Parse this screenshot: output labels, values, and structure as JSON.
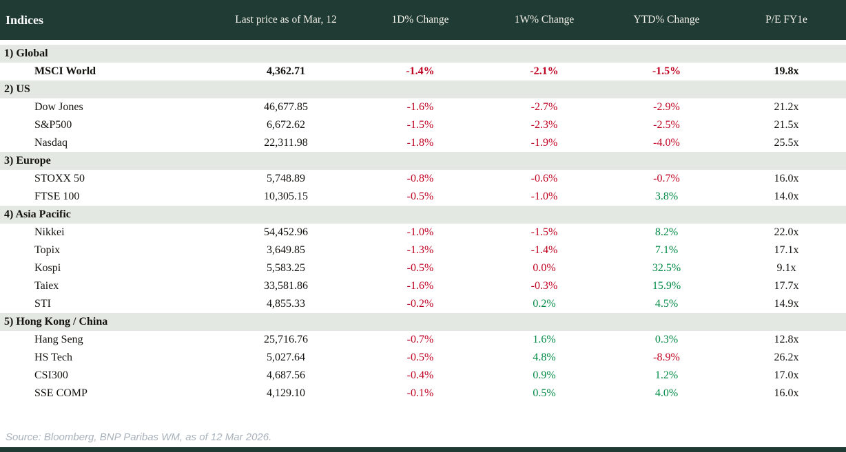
{
  "header": {
    "title": "Indices",
    "columns": [
      "Last price as of Mar, 12",
      "1D% Change",
      "1W% Change",
      "YTD% Change",
      "P/E FY1e"
    ]
  },
  "table": {
    "sections": [
      {
        "label": "1) Global",
        "rows": [
          {
            "name": "MSCI World",
            "bold": true,
            "price": "4,362.71",
            "changes": [
              {
                "v": "-1.4%",
                "c": "neg"
              },
              {
                "v": "-2.1%",
                "c": "neg"
              },
              {
                "v": "-1.5%",
                "c": "neg"
              }
            ],
            "pe": "19.8x"
          }
        ]
      },
      {
        "label": "2) US",
        "rows": [
          {
            "name": "Dow Jones",
            "bold": false,
            "price": "46,677.85",
            "changes": [
              {
                "v": "-1.6%",
                "c": "neg"
              },
              {
                "v": "-2.7%",
                "c": "neg"
              },
              {
                "v": "-2.9%",
                "c": "neg"
              }
            ],
            "pe": "21.2x"
          },
          {
            "name": "S&P500",
            "bold": false,
            "price": "6,672.62",
            "changes": [
              {
                "v": "-1.5%",
                "c": "neg"
              },
              {
                "v": "-2.3%",
                "c": "neg"
              },
              {
                "v": "-2.5%",
                "c": "neg"
              }
            ],
            "pe": "21.5x"
          },
          {
            "name": "Nasdaq",
            "bold": false,
            "price": "22,311.98",
            "changes": [
              {
                "v": "-1.8%",
                "c": "neg"
              },
              {
                "v": "-1.9%",
                "c": "neg"
              },
              {
                "v": "-4.0%",
                "c": "neg"
              }
            ],
            "pe": "25.5x"
          }
        ]
      },
      {
        "label": "3) Europe",
        "rows": [
          {
            "name": "STOXX 50",
            "bold": false,
            "price": "5,748.89",
            "changes": [
              {
                "v": "-0.8%",
                "c": "neg"
              },
              {
                "v": "-0.6%",
                "c": "neg"
              },
              {
                "v": "-0.7%",
                "c": "neg"
              }
            ],
            "pe": "16.0x"
          },
          {
            "name": "FTSE 100",
            "bold": false,
            "price": "10,305.15",
            "changes": [
              {
                "v": "-0.5%",
                "c": "neg"
              },
              {
                "v": "-1.0%",
                "c": "neg"
              },
              {
                "v": "3.8%",
                "c": "pos"
              }
            ],
            "pe": "14.0x"
          }
        ]
      },
      {
        "label": "4) Asia Pacific",
        "rows": [
          {
            "name": "Nikkei",
            "bold": false,
            "price": "54,452.96",
            "changes": [
              {
                "v": "-1.0%",
                "c": "neg"
              },
              {
                "v": "-1.5%",
                "c": "neg"
              },
              {
                "v": "8.2%",
                "c": "pos"
              }
            ],
            "pe": "22.0x"
          },
          {
            "name": "Topix",
            "bold": false,
            "price": "3,649.85",
            "changes": [
              {
                "v": "-1.3%",
                "c": "neg"
              },
              {
                "v": "-1.4%",
                "c": "neg"
              },
              {
                "v": "7.1%",
                "c": "pos"
              }
            ],
            "pe": "17.1x"
          },
          {
            "name": "Kospi",
            "bold": false,
            "price": "5,583.25",
            "changes": [
              {
                "v": "-0.5%",
                "c": "neg"
              },
              {
                "v": "0.0%",
                "c": "neg"
              },
              {
                "v": "32.5%",
                "c": "pos"
              }
            ],
            "pe": "9.1x"
          },
          {
            "name": "Taiex",
            "bold": false,
            "price": "33,581.86",
            "changes": [
              {
                "v": "-1.6%",
                "c": "neg"
              },
              {
                "v": "-0.3%",
                "c": "neg"
              },
              {
                "v": "15.9%",
                "c": "pos"
              }
            ],
            "pe": "17.7x"
          },
          {
            "name": "STI",
            "bold": false,
            "price": "4,855.33",
            "changes": [
              {
                "v": "-0.2%",
                "c": "neg"
              },
              {
                "v": "0.2%",
                "c": "pos"
              },
              {
                "v": "4.5%",
                "c": "pos"
              }
            ],
            "pe": "14.9x"
          }
        ]
      },
      {
        "label": "5) Hong Kong / China",
        "rows": [
          {
            "name": "Hang Seng",
            "bold": false,
            "price": "25,716.76",
            "changes": [
              {
                "v": "-0.7%",
                "c": "neg"
              },
              {
                "v": "1.6%",
                "c": "pos"
              },
              {
                "v": "0.3%",
                "c": "pos"
              }
            ],
            "pe": "12.8x"
          },
          {
            "name": "HS Tech",
            "bold": false,
            "price": "5,027.64",
            "changes": [
              {
                "v": "-0.5%",
                "c": "neg"
              },
              {
                "v": "4.8%",
                "c": "pos"
              },
              {
                "v": "-8.9%",
                "c": "neg"
              }
            ],
            "pe": "26.2x"
          },
          {
            "name": "CSI300",
            "bold": false,
            "price": "4,687.56",
            "changes": [
              {
                "v": "-0.4%",
                "c": "neg"
              },
              {
                "v": "0.9%",
                "c": "pos"
              },
              {
                "v": "1.2%",
                "c": "pos"
              }
            ],
            "pe": "17.0x"
          },
          {
            "name": "SSE COMP",
            "bold": false,
            "price": "4,129.10",
            "changes": [
              {
                "v": "-0.1%",
                "c": "neg"
              },
              {
                "v": "0.5%",
                "c": "pos"
              },
              {
                "v": "4.0%",
                "c": "pos"
              }
            ],
            "pe": "16.0x"
          }
        ]
      }
    ]
  },
  "footer": {
    "source": "Source: Bloomberg, BNP Paribas WM, as of 12 Mar 2026."
  },
  "colors": {
    "header_bg": "#1f3b33",
    "section_bg": "#e4e8e2",
    "negative": "#c00020",
    "positive": "#008a45"
  }
}
